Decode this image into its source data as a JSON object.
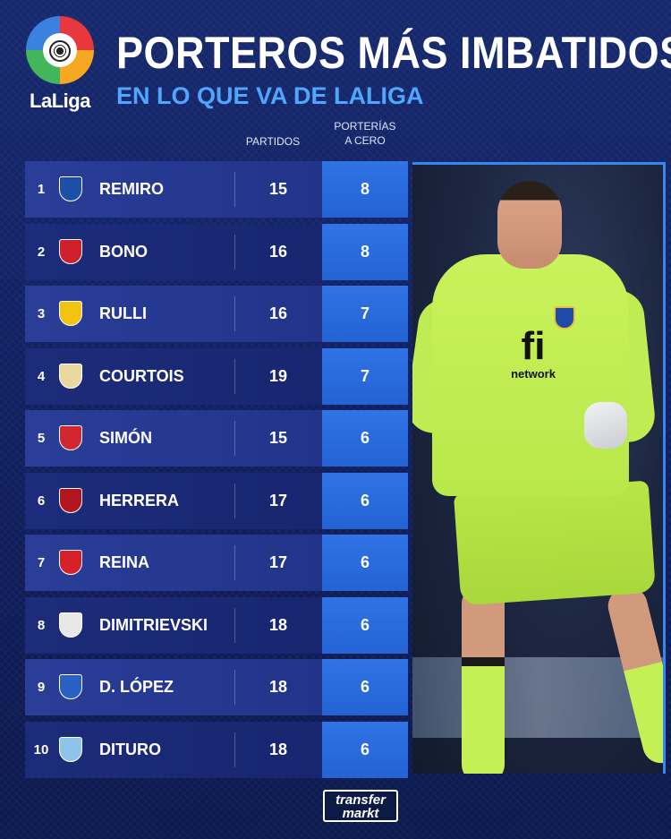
{
  "brand": {
    "logo_text": "LaLiga",
    "logo_icon": "laliga-logo-icon"
  },
  "header": {
    "title": "PORTEROS MÁS IMBATIDOS",
    "subtitle": "EN LO QUE VA DE LALIGA"
  },
  "columns": {
    "partidos": "PARTIDOS",
    "porterias_line1": "PORTERÍAS",
    "porterias_line2": "A CERO"
  },
  "rows": [
    {
      "rank": "1",
      "name": "REMIRO",
      "partidos": "15",
      "porterias": "8",
      "crest": "real-sociedad-crest-icon",
      "color": "#1b4fa8"
    },
    {
      "rank": "2",
      "name": "BONO",
      "partidos": "16",
      "porterias": "8",
      "crest": "sevilla-crest-icon",
      "color": "#d0202b"
    },
    {
      "rank": "3",
      "name": "RULLI",
      "partidos": "16",
      "porterias": "7",
      "crest": "villarreal-crest-icon",
      "color": "#f2c40f"
    },
    {
      "rank": "4",
      "name": "COURTOIS",
      "partidos": "19",
      "porterias": "7",
      "crest": "real-madrid-crest-icon",
      "color": "#e9d9a0"
    },
    {
      "rank": "5",
      "name": "SIMÓN",
      "partidos": "15",
      "porterias": "6",
      "crest": "athletic-crest-icon",
      "color": "#d22630"
    },
    {
      "rank": "6",
      "name": "HERRERA",
      "partidos": "17",
      "porterias": "6",
      "crest": "osasuna-crest-icon",
      "color": "#b3151f"
    },
    {
      "rank": "7",
      "name": "REINA",
      "partidos": "17",
      "porterias": "6",
      "crest": "mallorca-crest-icon",
      "color": "#d6212a"
    },
    {
      "rank": "8",
      "name": "DIMITRIEVSKI",
      "partidos": "18",
      "porterias": "6",
      "crest": "rayo-vallecano-crest-icon",
      "color": "#e8e8e8"
    },
    {
      "rank": "9",
      "name": "D. LÓPEZ",
      "partidos": "18",
      "porterias": "6",
      "crest": "espanyol-crest-icon",
      "color": "#2a5fc4"
    },
    {
      "rank": "10",
      "name": "DITURO",
      "partidos": "18",
      "porterias": "6",
      "crest": "celta-crest-icon",
      "color": "#8fc3ea"
    }
  ],
  "photo": {
    "sponsor_big": "fi",
    "sponsor_small": "network"
  },
  "footer": {
    "tm_line1": "transfer",
    "tm_line2": "markt"
  },
  "colors": {
    "background": "#112061",
    "accent": "#2f73e6",
    "subtitle": "#4fa6ff"
  }
}
